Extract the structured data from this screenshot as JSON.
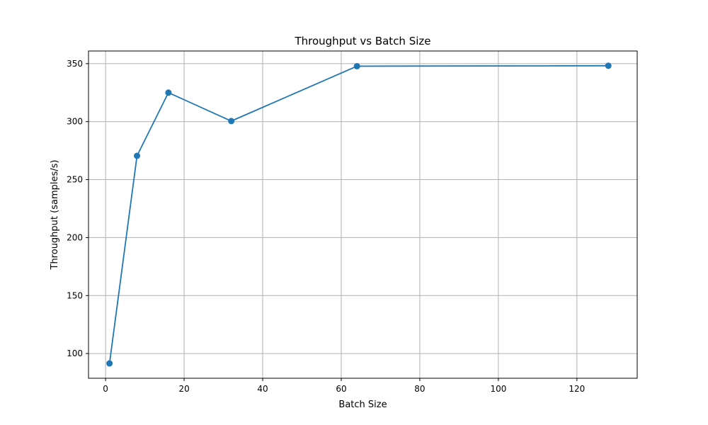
{
  "chart_data": {
    "type": "line",
    "title": "Throughput vs Batch Size",
    "xlabel": "Batch Size",
    "ylabel": "Throughput (samples/s)",
    "xlim": [
      -4.35,
      135.35
    ],
    "ylim": [
      78.7,
      360.9
    ],
    "xticks": [
      0,
      20,
      40,
      60,
      80,
      100,
      120
    ],
    "yticks": [
      100,
      150,
      200,
      250,
      300,
      350
    ],
    "grid": true,
    "series": [
      {
        "color": "#1f77b4",
        "marker": "circle",
        "x": [
          1,
          8,
          16,
          32,
          64,
          128
        ],
        "y": [
          91.5,
          270.5,
          325.0,
          300.5,
          347.8,
          348.2
        ]
      }
    ]
  }
}
